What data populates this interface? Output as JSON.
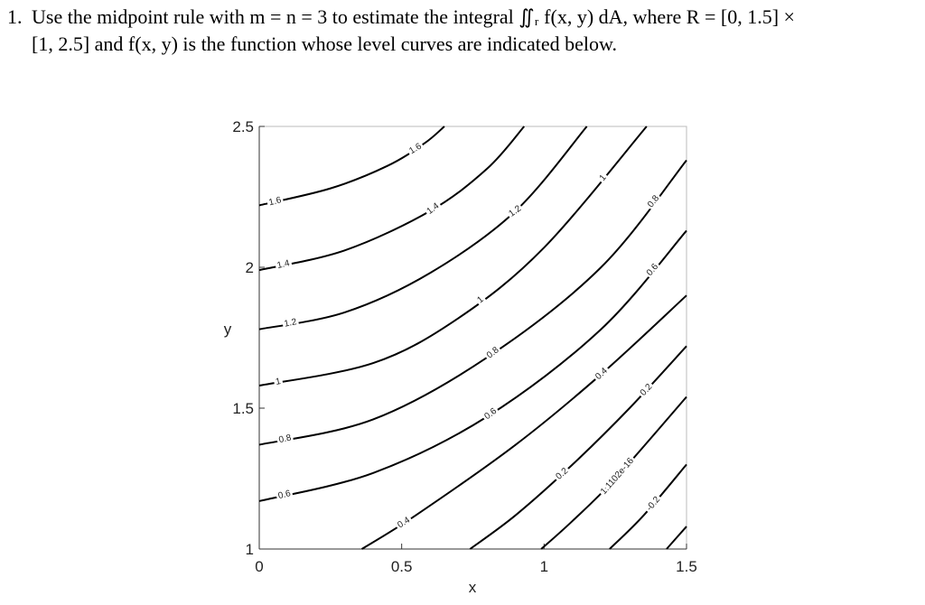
{
  "problem": {
    "number": "1.",
    "lines": [
      "Use the midpoint rule with m = n = 3 to estimate the integral ∬ᵣ f(x, y) dA, where R = [0, 1.5] ×",
      "[1, 2.5] and f(x, y) is the function whose level curves are indicated below."
    ]
  },
  "chart_data": {
    "type": "contour",
    "xlabel": "x",
    "ylabel": "y",
    "xlim": [
      0,
      1.5
    ],
    "ylim": [
      1,
      2.5
    ],
    "xticks": [
      0,
      0.5,
      1,
      1.5
    ],
    "yticks": [
      1,
      1.5,
      2,
      2.5
    ],
    "grid": false,
    "color": "#000000",
    "contours": [
      {
        "level": 1.6,
        "x": [
          0,
          0.25,
          0.45,
          0.58,
          0.65
        ],
        "y": [
          2.22,
          2.28,
          2.36,
          2.44,
          2.5
        ]
      },
      {
        "level": 1.4,
        "x": [
          0,
          0.3,
          0.6,
          0.8,
          0.93
        ],
        "y": [
          1.99,
          2.06,
          2.2,
          2.35,
          2.5
        ]
      },
      {
        "level": 1.2,
        "x": [
          0,
          0.3,
          0.6,
          0.9,
          1.15
        ],
        "y": [
          1.78,
          1.84,
          1.98,
          2.2,
          2.5
        ]
      },
      {
        "level": 1,
        "x": [
          0,
          0.4,
          0.7,
          1.0,
          1.36
        ],
        "y": [
          1.58,
          1.66,
          1.82,
          2.07,
          2.5
        ]
      },
      {
        "level": 0.8,
        "x": [
          0,
          0.4,
          0.8,
          1.2,
          1.5
        ],
        "y": [
          1.37,
          1.46,
          1.68,
          2.0,
          2.38
        ]
      },
      {
        "level": 0.6,
        "x": [
          0,
          0.4,
          0.8,
          1.2,
          1.5
        ],
        "y": [
          1.17,
          1.27,
          1.47,
          1.78,
          2.13
        ]
      },
      {
        "level": 0.4,
        "x": [
          0.36,
          0.55,
          0.9,
          1.2,
          1.5
        ],
        "y": [
          1.0,
          1.12,
          1.37,
          1.62,
          1.9
        ]
      },
      {
        "level": 0.2,
        "x": [
          0.74,
          0.9,
          1.1,
          1.3,
          1.5
        ],
        "y": [
          1.0,
          1.12,
          1.3,
          1.5,
          1.72
        ]
      },
      {
        "level": 1.1102e-16,
        "x": [
          0.99,
          1.1,
          1.25,
          1.5
        ],
        "y": [
          1.0,
          1.1,
          1.25,
          1.54
        ]
      },
      {
        "level": -0.2,
        "x": [
          1.23,
          1.35,
          1.5
        ],
        "y": [
          1.0,
          1.12,
          1.3
        ]
      },
      {
        "x": [
          1.43,
          1.5
        ],
        "y": [
          1.0,
          1.08
        ]
      }
    ]
  }
}
